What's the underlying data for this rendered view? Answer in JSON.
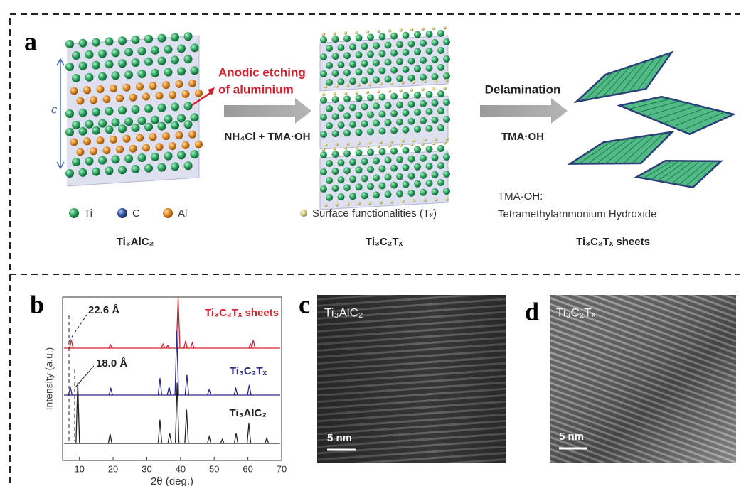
{
  "panel_a": {
    "label": "a",
    "c_axis": "c",
    "etching": [
      "Anodic etching",
      "of aluminium"
    ],
    "step1_reagent": "NH₄Cl + TMA·OH",
    "step2": "Delamination",
    "step2_reagent": "TMA·OH",
    "legend": [
      "Ti",
      "C",
      "Al"
    ],
    "surface": "Surface functionalities (Tₓ)",
    "tma_definition": [
      "TMA·OH:",
      "Tetramethylammonium Hydroxide"
    ],
    "materials": [
      "Ti₃AlC₂",
      "Ti₃C₂Tₓ",
      "Ti₃C₂Tₓ  sheets"
    ]
  },
  "panel_b": {
    "label": "b",
    "annotations": [
      "22.6 Å",
      "18.0 Å"
    ]
  },
  "chart_data": {
    "type": "xrd",
    "x_label": "2θ (deg.)",
    "y_label": "Intensity (a.u.)",
    "xlim": [
      5,
      70
    ],
    "xticks": [
      10,
      20,
      30,
      40,
      50,
      60,
      70
    ],
    "series": [
      {
        "name": "Ti₃C₂Tₓ sheets",
        "color": "#d0202c",
        "x": [
          7.6,
          19.2,
          34.8,
          36.2,
          39.3,
          41.5,
          43.5,
          60.8,
          61.6
        ],
        "values": [
          12,
          5,
          6,
          4,
          130,
          10,
          8,
          6,
          12
        ]
      },
      {
        "name": "Ti₃C₂Tₓ",
        "color": "#2a2a8a",
        "x": [
          7.3,
          19.3,
          33.9,
          36.6,
          38.9,
          41.9,
          48.5,
          56.4,
          60.4
        ],
        "values": [
          12,
          10,
          25,
          12,
          95,
          30,
          8,
          10,
          15
        ]
      },
      {
        "name": "Ti₃AlC₂",
        "color": "#222222",
        "x": [
          9.5,
          19.1,
          33.9,
          36.8,
          39.0,
          41.8,
          48.5,
          52.4,
          56.5,
          60.3,
          65.6
        ],
        "values": [
          90,
          14,
          35,
          15,
          90,
          50,
          10,
          6,
          15,
          30,
          8
        ]
      }
    ]
  },
  "panel_c": {
    "label": "c",
    "caption": "Ti₃AlC₂",
    "scale": "5 nm"
  },
  "panel_d": {
    "label": "d",
    "caption": "Ti₃C₂Tₓ",
    "scale": "5 nm"
  }
}
